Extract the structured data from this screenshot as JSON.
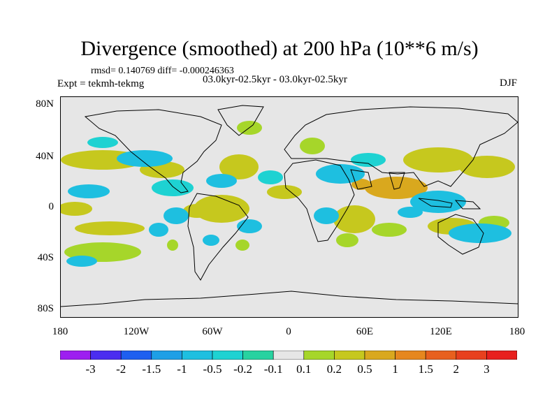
{
  "title": "Divergence (smoothed) at 200 hPa (10**6 m/s)",
  "stats": "rmsd= 0.140769 diff= -0.000246363",
  "experiment": "Expt = tekmh-tekmg",
  "period": "03.0kyr-02.5kyr - 03.0kyr-02.5kyr",
  "season": "DJF",
  "lat_labels": [
    "80N",
    "40N",
    "0",
    "40S",
    "80S"
  ],
  "lon_labels": [
    "180",
    "120W",
    "60W",
    "0",
    "60E",
    "120E",
    "180"
  ],
  "colorbar": {
    "labels": [
      "-3",
      "-2",
      "-1.5",
      "-1",
      "-0.5",
      "-0.2",
      "-0.1",
      "0.1",
      "0.2",
      "0.5",
      "1",
      "1.5",
      "2",
      "3"
    ],
    "colors": [
      "#9d1ff0",
      "#4b2df0",
      "#1e5ff0",
      "#1e9fe6",
      "#1ebfe0",
      "#1ed2d2",
      "#28d2a0",
      "#e6e6e6",
      "#a6d62a",
      "#c6c81e",
      "#d9a81e",
      "#e6871e",
      "#e8601e",
      "#e8401e",
      "#e8201e"
    ]
  }
}
